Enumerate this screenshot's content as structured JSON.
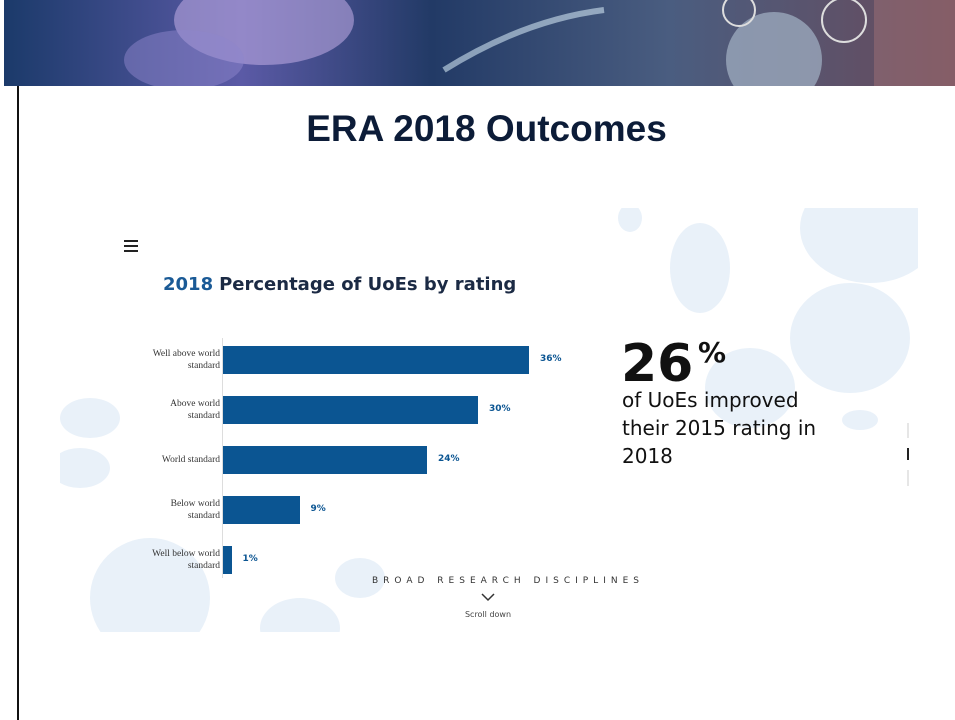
{
  "slide_title": "ERA 2018 Outcomes",
  "chart_data": {
    "type": "bar",
    "orientation": "horizontal",
    "title_year": "2018",
    "title": "Percentage of UoEs by rating",
    "categories": [
      "Well above world standard",
      "Above world standard",
      "World standard",
      "Below world standard",
      "Well below world standard"
    ],
    "values": [
      36,
      30,
      24,
      9,
      1
    ],
    "value_labels": [
      "36%",
      "30%",
      "24%",
      "9%",
      "1%"
    ],
    "color": "#0b5592"
  },
  "stat": {
    "number": "26",
    "unit": "%",
    "text": "of UoEs improved their 2015 rating in 2018"
  },
  "section_label": "BROAD RESEARCH DISCIPLINES",
  "scroll_label": "Scroll down"
}
